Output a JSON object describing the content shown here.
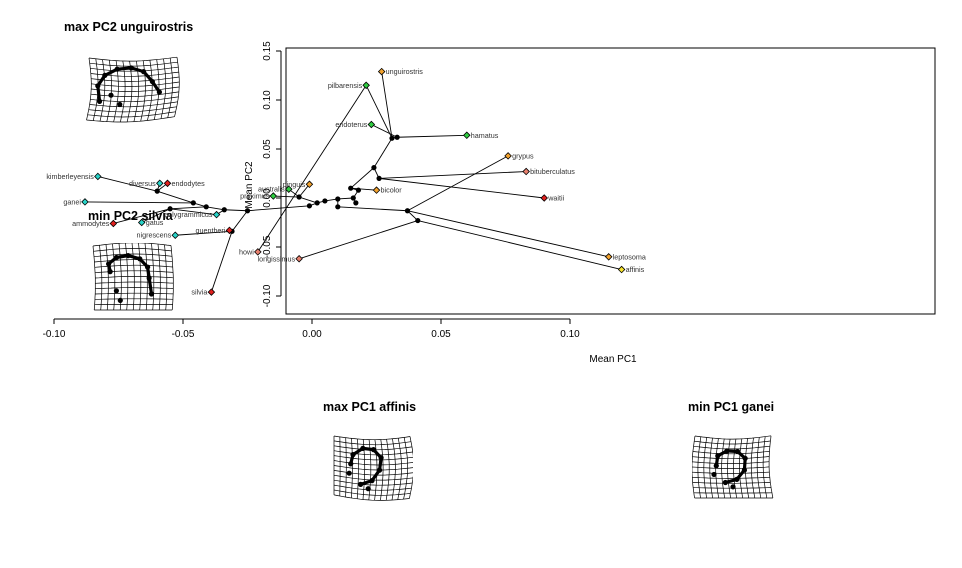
{
  "panels": [
    {
      "id": "maxpc2",
      "label": "max PC2 unguirostris"
    },
    {
      "id": "minpc2",
      "label": "min PC2 silvia"
    },
    {
      "id": "maxpc1",
      "label": "max PC1 affinis"
    },
    {
      "id": "minpc1",
      "label": "min PC1 ganei"
    }
  ],
  "chart_data": {
    "type": "scatter",
    "title": "",
    "xlabel": "Mean PC1",
    "ylabel": "Mean PC2",
    "xlim": [
      -0.1,
      0.14
    ],
    "ylim": [
      -0.11,
      0.155
    ],
    "xticks": [
      -0.1,
      -0.05,
      0.0,
      0.05,
      0.1
    ],
    "xtick_labels": [
      "-0.10",
      "-0.05",
      "0.00",
      "0.05",
      "0.10"
    ],
    "yticks": [
      -0.1,
      -0.05,
      0.0,
      0.05,
      0.1,
      0.15
    ],
    "ytick_labels": [
      "-0.10",
      "-0.05",
      "0.00",
      "0.05",
      "0.10",
      "0.15"
    ],
    "grid": false,
    "point_colors": {
      "orange": "#f2a22e",
      "green": "#2ecc40",
      "cyan": "#29d3c8",
      "red": "#e0201e",
      "salmon": "#e8806e",
      "yellow": "#f7e32a",
      "node": "#000000"
    },
    "tips": [
      {
        "name": "unguirostris",
        "x": 0.027,
        "y": 0.129,
        "color": "orange",
        "side": "right"
      },
      {
        "name": "pilbarensis",
        "x": 0.021,
        "y": 0.115,
        "color": "green",
        "side": "left"
      },
      {
        "name": "hamatus",
        "x": 0.06,
        "y": 0.064,
        "color": "green",
        "side": "right"
      },
      {
        "name": "endoterus",
        "x": 0.023,
        "y": 0.075,
        "color": "green",
        "side": "left"
      },
      {
        "name": "grypus",
        "x": 0.076,
        "y": 0.043,
        "color": "orange",
        "side": "right"
      },
      {
        "name": "bituberculatus",
        "x": 0.083,
        "y": 0.027,
        "color": "salmon",
        "side": "right"
      },
      {
        "name": "waitii",
        "x": 0.09,
        "y": 0.0,
        "color": "red",
        "side": "right"
      },
      {
        "name": "leptosoma",
        "x": 0.115,
        "y": -0.06,
        "color": "orange",
        "side": "right"
      },
      {
        "name": "affinis",
        "x": 0.12,
        "y": -0.073,
        "color": "yellow",
        "side": "right"
      },
      {
        "name": "kimberleyensis",
        "x": -0.083,
        "y": 0.022,
        "color": "cyan",
        "side": "left"
      },
      {
        "name": "ganei",
        "x": -0.088,
        "y": -0.004,
        "color": "cyan",
        "side": "left"
      },
      {
        "name": "ammodytes",
        "x": -0.077,
        "y": -0.026,
        "color": "red",
        "side": "left"
      },
      {
        "name": "gatus",
        "x": -0.066,
        "y": -0.025,
        "color": "cyan",
        "side": "right"
      },
      {
        "name": "diversus",
        "x": -0.059,
        "y": 0.015,
        "color": "cyan",
        "side": "left"
      },
      {
        "name": "endodytes",
        "x": -0.056,
        "y": 0.015,
        "color": "red",
        "side": "right"
      },
      {
        "name": "polygrammicus",
        "x": -0.037,
        "y": -0.017,
        "color": "cyan",
        "side": "left"
      },
      {
        "name": "nigrescens",
        "x": -0.053,
        "y": -0.038,
        "color": "cyan",
        "side": "left"
      },
      {
        "name": "guentheri",
        "x": -0.032,
        "y": -0.033,
        "color": "red",
        "side": "left"
      },
      {
        "name": "silvia",
        "x": -0.039,
        "y": -0.096,
        "color": "red",
        "side": "left"
      },
      {
        "name": "proximus",
        "x": -0.015,
        "y": 0.002,
        "color": "green",
        "side": "left"
      },
      {
        "name": "australis",
        "x": -0.009,
        "y": 0.009,
        "color": "green",
        "side": "left"
      },
      {
        "name": "pinguis",
        "x": -0.001,
        "y": 0.014,
        "color": "orange",
        "side": "left"
      },
      {
        "name": "bicolor",
        "x": 0.025,
        "y": 0.008,
        "color": "orange",
        "side": "right"
      },
      {
        "name": "howi",
        "x": -0.021,
        "y": -0.055,
        "color": "salmon",
        "side": "left"
      },
      {
        "name": "longissimus",
        "x": -0.005,
        "y": -0.062,
        "color": "salmon",
        "side": "left"
      }
    ],
    "nodes": [
      {
        "id": "n_ung",
        "x": 0.031,
        "y": 0.061
      },
      {
        "id": "n_ham",
        "x": 0.033,
        "y": 0.062
      },
      {
        "id": "n_top",
        "x": 0.024,
        "y": 0.031
      },
      {
        "id": "n_gry",
        "x": 0.026,
        "y": 0.02
      },
      {
        "id": "n_r1",
        "x": 0.018,
        "y": 0.008
      },
      {
        "id": "n_r2",
        "x": 0.016,
        "y": 0.0
      },
      {
        "id": "n_r3",
        "x": 0.017,
        "y": -0.005
      },
      {
        "id": "n_r4",
        "x": 0.015,
        "y": 0.01
      },
      {
        "id": "n_c1",
        "x": 0.01,
        "y": -0.001
      },
      {
        "id": "n_c2",
        "x": 0.005,
        "y": -0.003
      },
      {
        "id": "n_c3",
        "x": 0.002,
        "y": -0.005
      },
      {
        "id": "n_c4",
        "x": -0.005,
        "y": 0.001
      },
      {
        "id": "n_c5",
        "x": 0.01,
        "y": -0.009
      },
      {
        "id": "n_lep",
        "x": 0.037,
        "y": -0.013
      },
      {
        "id": "n_aff",
        "x": 0.041,
        "y": -0.023
      },
      {
        "id": "n_cen",
        "x": -0.001,
        "y": -0.008
      },
      {
        "id": "n_m1",
        "x": -0.025,
        "y": -0.013
      },
      {
        "id": "n_m2",
        "x": -0.034,
        "y": -0.012
      },
      {
        "id": "n_m3",
        "x": -0.041,
        "y": -0.009
      },
      {
        "id": "n_m4",
        "x": -0.055,
        "y": -0.011
      },
      {
        "id": "n_gu",
        "x": -0.031,
        "y": -0.034
      },
      {
        "id": "n_ki",
        "x": -0.06,
        "y": 0.007
      },
      {
        "id": "n_le",
        "x": -0.046,
        "y": -0.005
      }
    ],
    "edges": [
      [
        "unguirostris",
        "n_ung"
      ],
      [
        "pilbarensis",
        "n_ung"
      ],
      [
        "n_ung",
        "n_ham"
      ],
      [
        "hamatus",
        "n_ham"
      ],
      [
        "endoterus",
        "n_ham"
      ],
      [
        "n_ung",
        "n_top"
      ],
      [
        "pilbarensis",
        "howi"
      ],
      [
        "n_top",
        "n_gry"
      ],
      [
        "n_top",
        "n_r4"
      ],
      [
        "n_gry",
        "bituberculatus"
      ],
      [
        "n_gry",
        "waitii"
      ],
      [
        "n_r4",
        "bicolor"
      ],
      [
        "n_r4",
        "n_r1"
      ],
      [
        "n_r1",
        "n_r2"
      ],
      [
        "n_r2",
        "n_r3"
      ],
      [
        "n_r2",
        "n_c1"
      ],
      [
        "n_c1",
        "n_c2"
      ],
      [
        "n_c2",
        "n_c3"
      ],
      [
        "n_c3",
        "n_c4"
      ],
      [
        "n_c4",
        "pinguis"
      ],
      [
        "n_c4",
        "australis"
      ],
      [
        "n_c4",
        "proximus"
      ],
      [
        "n_c1",
        "n_c5"
      ],
      [
        "n_c5",
        "n_lep"
      ],
      [
        "n_lep",
        "grypus"
      ],
      [
        "n_lep",
        "leptosoma"
      ],
      [
        "n_lep",
        "n_aff"
      ],
      [
        "n_aff",
        "longissimus"
      ],
      [
        "n_aff",
        "affinis"
      ],
      [
        "n_c3",
        "n_cen"
      ],
      [
        "n_cen",
        "n_m1"
      ],
      [
        "n_m1",
        "n_m2"
      ],
      [
        "n_m2",
        "n_m3"
      ],
      [
        "n_m3",
        "n_le"
      ],
      [
        "n_le",
        "n_ki"
      ],
      [
        "n_ki",
        "kimberleyensis"
      ],
      [
        "n_ki",
        "diversus"
      ],
      [
        "n_ki",
        "endodytes"
      ],
      [
        "n_le",
        "ganei"
      ],
      [
        "n_m3",
        "n_m4"
      ],
      [
        "n_m4",
        "ammodytes"
      ],
      [
        "n_m4",
        "gatus"
      ],
      [
        "n_m2",
        "polygrammicus"
      ],
      [
        "n_m1",
        "n_gu"
      ],
      [
        "n_gu",
        "guentheri"
      ],
      [
        "n_gu",
        "silvia"
      ],
      [
        "n_gu",
        "nigrescens"
      ],
      [
        "n_m4",
        "polygrammicus"
      ]
    ]
  }
}
